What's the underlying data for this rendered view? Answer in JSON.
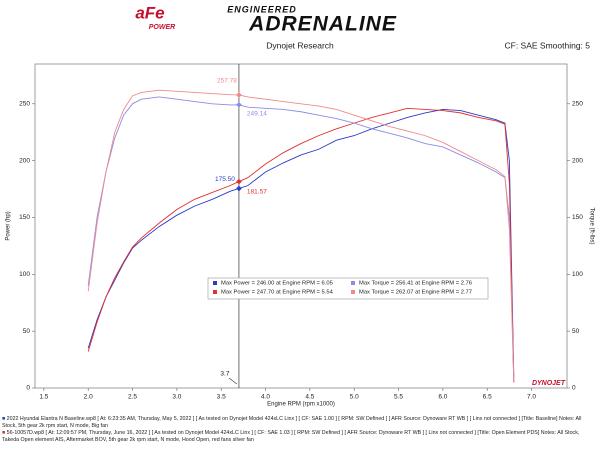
{
  "header": {
    "logo": "aFe",
    "logo_sub": "POWER",
    "tagline_top": "ENGINEERED",
    "tagline_main": "ADRENALINE"
  },
  "chart_data": {
    "type": "line",
    "title": "Dynojet Research",
    "subtitle": "CF: SAE Smoothing: 5",
    "x_label": "Engine RPM (rpm x1000)",
    "y_label": "Power (hp)",
    "y2_label": "Torque (ft-lbs)",
    "watermark": "DYNOJET",
    "x": [
      2.0,
      2.1,
      2.2,
      2.3,
      2.4,
      2.5,
      2.6,
      2.8,
      3.0,
      3.2,
      3.4,
      3.6,
      3.7,
      3.8,
      4.0,
      4.2,
      4.4,
      4.6,
      4.8,
      5.0,
      5.2,
      5.4,
      5.6,
      5.8,
      6.0,
      6.2,
      6.4,
      6.6,
      6.7,
      6.75,
      6.8
    ],
    "xlim": [
      1.4,
      7.4
    ],
    "xticks": [
      1.5,
      {
        "value": 2,
        "label": "2.0"
      },
      2.5,
      {
        "value": 3,
        "label": "3.0"
      },
      3.5,
      {
        "value": 4,
        "label": "4.0"
      },
      4.5,
      {
        "value": 5,
        "label": "5.0"
      },
      5.5,
      {
        "value": 6,
        "label": "6.0"
      },
      6.5,
      {
        "value": 7,
        "label": "7.0"
      }
    ],
    "ylim": [
      0,
      285
    ],
    "yticks": [
      0,
      50,
      100,
      150,
      200,
      250
    ],
    "y2lim": [
      0,
      285
    ],
    "y2ticks": [
      0,
      50,
      100,
      150,
      200,
      250
    ],
    "grid": false,
    "series": [
      {
        "name": "Max Power = 246.00 at Engine RPM = 6.05",
        "color": "#2a3cc8",
        "values": [
          35,
          60,
          80,
          95,
          110,
          123,
          130,
          142,
          152,
          160,
          166,
          173,
          175.5,
          178,
          190,
          198,
          205,
          210,
          218,
          222,
          228,
          233,
          238,
          242,
          245,
          244,
          240,
          236,
          233,
          200,
          10
        ]
      },
      {
        "name": "Max Power = 247.70 at Engine RPM = 5.54",
        "color": "#e03030",
        "values": [
          32,
          58,
          80,
          97,
          111,
          124,
          132,
          145,
          157,
          166,
          172,
          178,
          181.57,
          185,
          197,
          207,
          215,
          222,
          228,
          233,
          238,
          242,
          246,
          245,
          244,
          242,
          238,
          235,
          232,
          180,
          5
        ]
      },
      {
        "name": "Max Torque = 256.41 at Engine RPM = 2.76",
        "color": "#8c8ce6",
        "axis": "y2",
        "values": [
          90,
          150,
          190,
          220,
          240,
          250,
          254,
          256,
          254,
          252,
          250,
          249,
          249.14,
          247,
          246,
          245,
          243,
          240,
          237,
          233,
          228,
          224,
          220,
          215,
          212,
          205,
          198,
          190,
          185,
          150,
          5
        ]
      },
      {
        "name": "Max Torque = 262.07 at Engine RPM = 2.77",
        "color": "#f08a8a",
        "axis": "y2",
        "values": [
          85,
          145,
          190,
          225,
          245,
          257,
          260,
          262,
          261,
          260,
          259,
          258,
          257.78,
          256,
          254,
          252,
          250,
          248,
          245,
          240,
          235,
          230,
          226,
          222,
          216,
          208,
          200,
          192,
          186,
          140,
          5
        ]
      }
    ],
    "cursor_x": 3.7,
    "readouts": [
      {
        "value": 257.78,
        "axis": "y2",
        "color": "#f08a8a"
      },
      {
        "value": 249.14,
        "axis": "y2",
        "color": "#8c8ce6"
      },
      {
        "value": 175.5,
        "label": "175.50",
        "axis": "y",
        "color": "#2a3cc8"
      },
      {
        "value": 181.57,
        "axis": "y",
        "color": "#e03030"
      }
    ]
  },
  "footer": {
    "runs": [
      "2022 Hyundai Elantra N Baseline.wp8 [ At: 6:23:35 AM, Thursday, May 5, 2022 ] [ As tested on Dynojet Model 424xLC Linx ] [ CF: SAE 1.00 ] [ RPM: SW Defined ] [ AFR Source: Dynoware RT WB ] [ Linx not connected ] [Title: Baseline] Notes: All Stock, 5th gear 2k rpm start, N mode, Big fan",
      "56-10057D.wp8 [ At: 12:09:57 PM, Thursday, June 16, 2022 ] [ As tested on Dynojet Model 424xLC Linx ] [ CF: SAE 1.03 ] [ RPM: SW Defined ] [ AFR Source: Dynoware RT WB ] [ Linx not connected ] [Title: Open Element PDS] Notes: All Stock, Takeda Open element AIS, Aftermarket BOV, 5th gear 2k rpm start, N mode, Hood Open, red fans silver fan"
    ]
  }
}
